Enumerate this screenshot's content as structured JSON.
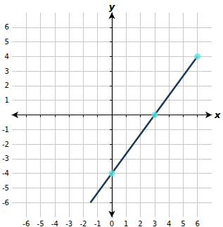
{
  "chart_data": {
    "type": "line",
    "x_label": "x",
    "y_label": "y",
    "series": [
      {
        "type": "line",
        "x": [
          -1.5,
          6
        ],
        "values": [
          -6,
          4
        ],
        "color": "#1b3a57",
        "marker": "arrow"
      },
      {
        "type": "scatter",
        "x": [
          0,
          3,
          6
        ],
        "values": [
          -4,
          0,
          4
        ],
        "color": "#5ee6e0",
        "marker": "circle"
      }
    ],
    "xlim": [
      -7,
      7
    ],
    "ylim": [
      -7,
      7
    ],
    "xticks": [
      -6,
      -5,
      -4,
      -3,
      -2,
      -1,
      0,
      1,
      2,
      3,
      4,
      5,
      6
    ],
    "yticks": [
      -6,
      -5,
      -4,
      -3,
      -2,
      -1,
      1,
      2,
      3,
      4,
      5,
      6
    ],
    "grid": true
  }
}
